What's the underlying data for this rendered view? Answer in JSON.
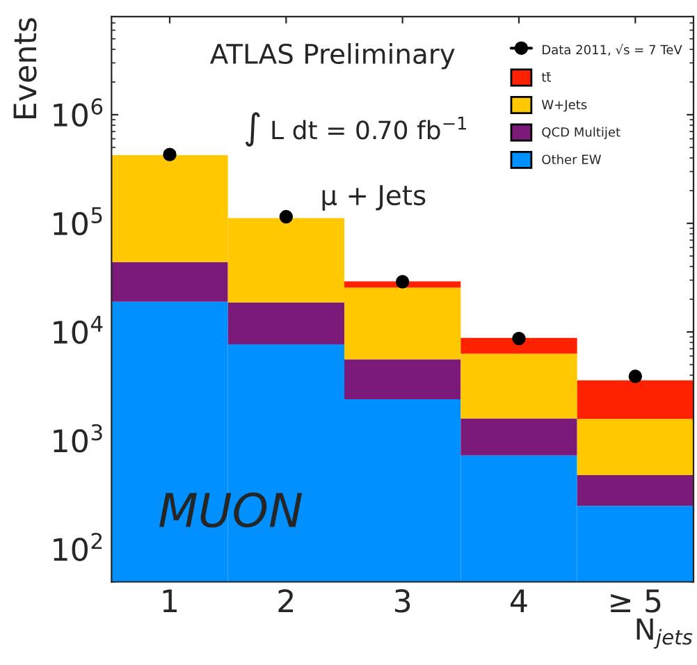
{
  "chart_data": {
    "type": "bar",
    "stacked": true,
    "log": true,
    "categories": [
      "1",
      "2",
      "3",
      "4",
      "≥ 5"
    ],
    "series": [
      {
        "name": "Other EW",
        "color": "#0090ff",
        "values": [
          19000,
          7700,
          2400,
          730,
          250
        ]
      },
      {
        "name": "QCD Multijet",
        "color": "#7b1a78",
        "values": [
          25000,
          11000,
          3200,
          870,
          230
        ]
      },
      {
        "name": "W+Jets",
        "color": "#ffc800",
        "values": [
          380000,
          93000,
          20000,
          4700,
          1100
        ]
      },
      {
        "name": "tt̄",
        "color": "#ff2200",
        "values": [
          null,
          null,
          3600,
          2500,
          2000
        ]
      },
      {
        "name": "Data 2011, √s = 7 TeV",
        "type": "scatter",
        "color": "#000000",
        "marker": "circle",
        "x": [
          "1",
          "2",
          "3",
          "4",
          "≥ 5"
        ],
        "values": [
          430000,
          115000,
          29000,
          8700,
          3900
        ]
      }
    ],
    "xlabel": "N$_{jets}$",
    "ylabel": "Events",
    "ylim": [
      50,
      8000000
    ],
    "yticks": [
      {
        "value": 100,
        "label": "10$^{2}$"
      },
      {
        "value": 1000,
        "label": "10$^{3}$"
      },
      {
        "value": 10000,
        "label": "10$^{4}$"
      },
      {
        "value": 100000,
        "label": "10$^{5}$"
      },
      {
        "value": 1000000,
        "label": "10$^{6}$"
      }
    ],
    "legend": "top right",
    "grid": false,
    "annotations": [
      "ATLAS Preliminary",
      "∫ L dt = 0.70 fb$^{−1}$",
      "μ + Jets",
      "MUON"
    ]
  }
}
